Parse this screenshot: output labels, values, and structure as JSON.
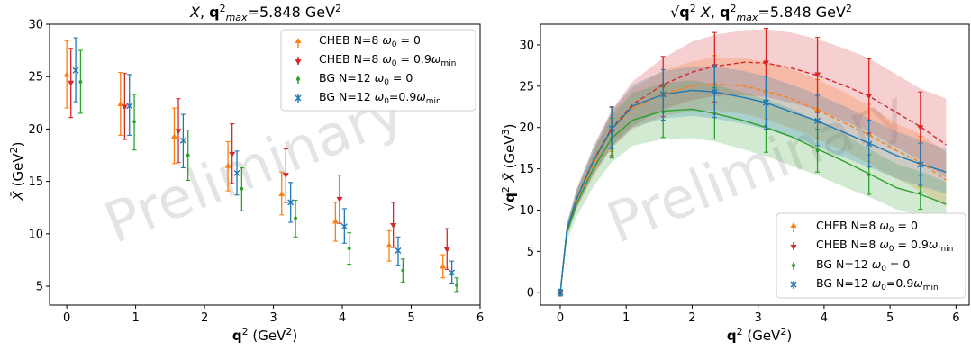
{
  "chart_data": [
    {
      "type": "scatter",
      "title": "X̄,  q²max=5.848 GeV²",
      "xlabel": "q² (GeV²)",
      "ylabel": "X̄ (GeV²)",
      "xlim": [
        -0.25,
        6
      ],
      "ylim": [
        3.2,
        30
      ],
      "xticks": [
        0,
        1,
        2,
        3,
        4,
        5,
        6
      ],
      "yticks": [
        5,
        10,
        15,
        20,
        25,
        30
      ],
      "grid": false,
      "legend_position": "top-right",
      "watermark": "Preliminary",
      "series": [
        {
          "name": "CHEB N=8  ω0 = 0",
          "color": "#ff7f0e",
          "marker": "triangle-up",
          "points": [
            {
              "x": 0.0,
              "y": 25.2,
              "lo": 22.0,
              "hi": 28.4
            },
            {
              "x": 0.78,
              "y": 22.4,
              "lo": 19.4,
              "hi": 25.4
            },
            {
              "x": 1.56,
              "y": 19.3,
              "lo": 16.7,
              "hi": 22.0
            },
            {
              "x": 2.34,
              "y": 16.5,
              "lo": 14.1,
              "hi": 18.8
            },
            {
              "x": 3.12,
              "y": 13.8,
              "lo": 11.8,
              "hi": 15.9
            },
            {
              "x": 3.9,
              "y": 11.2,
              "lo": 9.3,
              "hi": 13.0
            },
            {
              "x": 4.68,
              "y": 8.9,
              "lo": 7.4,
              "hi": 10.3
            },
            {
              "x": 5.46,
              "y": 6.9,
              "lo": 5.8,
              "hi": 8.0
            }
          ]
        },
        {
          "name": "CHEB N=8  ω0 = 0.9ωmin",
          "color": "#d62728",
          "marker": "triangle-down",
          "points": [
            {
              "x": 0.06,
              "y": 24.4,
              "lo": 21.1,
              "hi": 27.7
            },
            {
              "x": 0.84,
              "y": 22.1,
              "lo": 19.0,
              "hi": 25.3
            },
            {
              "x": 1.62,
              "y": 19.8,
              "lo": 16.8,
              "hi": 22.9
            },
            {
              "x": 2.4,
              "y": 17.6,
              "lo": 14.8,
              "hi": 20.5
            },
            {
              "x": 3.18,
              "y": 15.6,
              "lo": 13.0,
              "hi": 18.1
            },
            {
              "x": 3.96,
              "y": 13.3,
              "lo": 11.0,
              "hi": 15.6
            },
            {
              "x": 4.74,
              "y": 10.8,
              "lo": 8.7,
              "hi": 13.0
            },
            {
              "x": 5.52,
              "y": 8.5,
              "lo": 6.6,
              "hi": 10.5
            }
          ]
        },
        {
          "name": "BG      N=12  ω0 = 0",
          "color": "#2ca02c",
          "marker": "dot",
          "points": [
            {
              "x": 0.2,
              "y": 24.5,
              "lo": 21.5,
              "hi": 27.5
            },
            {
              "x": 0.98,
              "y": 20.7,
              "lo": 18.0,
              "hi": 23.3
            },
            {
              "x": 1.76,
              "y": 17.5,
              "lo": 15.1,
              "hi": 19.9
            },
            {
              "x": 2.54,
              "y": 14.3,
              "lo": 12.2,
              "hi": 16.3
            },
            {
              "x": 3.32,
              "y": 11.5,
              "lo": 9.7,
              "hi": 13.2
            },
            {
              "x": 4.1,
              "y": 8.6,
              "lo": 7.1,
              "hi": 10.1
            },
            {
              "x": 4.88,
              "y": 6.5,
              "lo": 5.4,
              "hi": 7.6
            },
            {
              "x": 5.66,
              "y": 5.1,
              "lo": 4.5,
              "hi": 5.8
            }
          ]
        },
        {
          "name": "BG      N=12  ω0=0.9ωmin",
          "color": "#1f77b4",
          "marker": "x",
          "points": [
            {
              "x": 0.13,
              "y": 25.6,
              "lo": 22.6,
              "hi": 28.7
            },
            {
              "x": 0.91,
              "y": 22.2,
              "lo": 19.4,
              "hi": 25.2
            },
            {
              "x": 1.69,
              "y": 18.9,
              "lo": 16.3,
              "hi": 21.4
            },
            {
              "x": 2.47,
              "y": 15.8,
              "lo": 13.7,
              "hi": 17.9
            },
            {
              "x": 3.25,
              "y": 13.0,
              "lo": 11.1,
              "hi": 14.9
            },
            {
              "x": 4.03,
              "y": 10.7,
              "lo": 9.1,
              "hi": 12.4
            },
            {
              "x": 4.81,
              "y": 8.4,
              "lo": 7.0,
              "hi": 9.7
            },
            {
              "x": 5.59,
              "y": 6.3,
              "lo": 5.3,
              "hi": 7.4
            }
          ]
        }
      ]
    },
    {
      "type": "line",
      "title": "√q² X̄,  q²max=5.848 GeV²",
      "xlabel": "q² (GeV²)",
      "ylabel": "√q² X̄ (GeV³)",
      "xlim": [
        -0.3,
        6.2
      ],
      "ylim": [
        -1.5,
        32.5
      ],
      "xticks": [
        0,
        1,
        2,
        3,
        4,
        5,
        6
      ],
      "yticks": [
        0,
        5,
        10,
        15,
        20,
        25,
        30
      ],
      "grid": false,
      "legend_position": "bottom-right",
      "watermark": "Preliminary",
      "series": [
        {
          "name": "CHEB N=8  ω0 = 0",
          "color": "#ff7f0e",
          "marker": "triangle-up",
          "dashed": true,
          "x": [
            0,
            0.1,
            0.25,
            0.5,
            0.78,
            1.1,
            1.56,
            2.0,
            2.34,
            2.8,
            3.12,
            3.5,
            3.9,
            4.3,
            4.68,
            5.1,
            5.46,
            5.85
          ],
          "y": [
            0,
            7.5,
            11.2,
            15.5,
            19.8,
            22.3,
            24.1,
            25.0,
            25.3,
            25.0,
            24.4,
            23.5,
            22.1,
            20.6,
            19.1,
            17.2,
            15.8,
            13.6
          ],
          "band_lo": [
            0,
            6.8,
            10.2,
            14.0,
            17.5,
            19.8,
            21.4,
            22.0,
            22.1,
            21.6,
            21.0,
            19.9,
            18.6,
            17.2,
            15.6,
            13.8,
            12.3,
            10.4
          ],
          "band_hi": [
            0,
            8.2,
            12.3,
            17.0,
            22.0,
            24.8,
            26.9,
            28.0,
            28.5,
            28.4,
            27.9,
            27.1,
            25.8,
            24.3,
            22.6,
            20.5,
            19.2,
            17.0
          ],
          "points": [
            {
              "x": 0.0,
              "y": 0.0,
              "lo": -0.4,
              "hi": 0.4
            },
            {
              "x": 0.78,
              "y": 19.8,
              "lo": 17.1,
              "hi": 22.4
            },
            {
              "x": 1.56,
              "y": 24.1,
              "lo": 20.8,
              "hi": 27.3
            },
            {
              "x": 2.34,
              "y": 25.3,
              "lo": 21.8,
              "hi": 28.7
            },
            {
              "x": 3.12,
              "y": 24.5,
              "lo": 21.0,
              "hi": 28.1
            },
            {
              "x": 3.9,
              "y": 22.2,
              "lo": 18.7,
              "hi": 25.8
            },
            {
              "x": 4.68,
              "y": 19.3,
              "lo": 15.9,
              "hi": 22.8
            },
            {
              "x": 5.46,
              "y": 15.8,
              "lo": 12.8,
              "hi": 18.9
            }
          ]
        },
        {
          "name": "CHEB N=8  ω0 = 0.9ωmin",
          "color": "#d62728",
          "marker": "triangle-down",
          "dashed": true,
          "x": [
            0,
            0.1,
            0.25,
            0.5,
            0.78,
            1.1,
            1.56,
            2.0,
            2.34,
            2.8,
            3.12,
            3.5,
            3.9,
            4.3,
            4.68,
            5.1,
            5.46,
            5.85
          ],
          "y": [
            0,
            7.5,
            11.4,
            16.0,
            19.9,
            22.8,
            25.2,
            26.7,
            27.4,
            27.9,
            27.8,
            27.2,
            26.3,
            25.1,
            23.8,
            21.8,
            20.1,
            17.9
          ],
          "band_lo": [
            0,
            6.8,
            10.3,
            14.4,
            17.8,
            20.2,
            22.2,
            23.3,
            23.8,
            23.9,
            23.7,
            23.0,
            22.1,
            20.8,
            19.5,
            17.6,
            16.0,
            13.9
          ],
          "band_hi": [
            0,
            8.3,
            12.6,
            17.6,
            22.1,
            25.6,
            28.4,
            30.4,
            31.2,
            31.8,
            31.9,
            31.5,
            30.7,
            29.6,
            28.4,
            26.4,
            24.7,
            23.5
          ],
          "points": [
            {
              "x": 0.0,
              "y": 0.0,
              "lo": -0.4,
              "hi": 0.4
            },
            {
              "x": 0.78,
              "y": 19.5,
              "lo": 16.6,
              "hi": 22.5
            },
            {
              "x": 1.56,
              "y": 25.0,
              "lo": 21.3,
              "hi": 28.6
            },
            {
              "x": 2.34,
              "y": 27.4,
              "lo": 23.1,
              "hi": 31.5
            },
            {
              "x": 3.12,
              "y": 27.8,
              "lo": 23.3,
              "hi": 32.0
            },
            {
              "x": 3.9,
              "y": 26.4,
              "lo": 21.8,
              "hi": 30.9
            },
            {
              "x": 4.68,
              "y": 23.8,
              "lo": 19.3,
              "hi": 28.3
            },
            {
              "x": 5.46,
              "y": 20.0,
              "lo": 15.7,
              "hi": 24.3
            }
          ]
        },
        {
          "name": "BG      N=12  ω0 = 0",
          "color": "#2ca02c",
          "marker": "dot",
          "dashed": false,
          "x": [
            0,
            0.1,
            0.25,
            0.5,
            0.78,
            1.1,
            1.56,
            2.0,
            2.34,
            2.8,
            3.12,
            3.5,
            3.9,
            4.3,
            4.68,
            5.1,
            5.46,
            5.85
          ],
          "y": [
            0,
            7.3,
            10.8,
            15.0,
            18.7,
            20.9,
            22.0,
            22.2,
            21.7,
            20.8,
            20.0,
            18.9,
            17.4,
            15.9,
            14.4,
            12.7,
            11.9,
            10.7
          ],
          "band_lo": [
            0,
            6.3,
            9.2,
            12.8,
            15.8,
            17.8,
            18.6,
            18.7,
            18.3,
            17.3,
            16.5,
            15.4,
            14.2,
            12.8,
            11.6,
            10.1,
            9.3,
            8.3
          ],
          "band_hi": [
            0,
            8.2,
            12.3,
            17.1,
            21.5,
            24.2,
            25.4,
            25.7,
            25.2,
            24.2,
            23.4,
            22.3,
            20.8,
            19.2,
            17.4,
            15.6,
            14.7,
            13.4
          ],
          "points": [
            {
              "x": 0.0,
              "y": 0.0,
              "lo": -0.4,
              "hi": 0.4
            },
            {
              "x": 0.78,
              "y": 18.7,
              "lo": 16.3,
              "hi": 21.1
            },
            {
              "x": 1.56,
              "y": 21.9,
              "lo": 18.8,
              "hi": 25.0
            },
            {
              "x": 2.34,
              "y": 21.7,
              "lo": 18.6,
              "hi": 24.8
            },
            {
              "x": 3.12,
              "y": 20.2,
              "lo": 17.0,
              "hi": 23.3
            },
            {
              "x": 3.9,
              "y": 17.2,
              "lo": 14.6,
              "hi": 19.8
            },
            {
              "x": 4.68,
              "y": 14.3,
              "lo": 11.9,
              "hi": 16.7
            },
            {
              "x": 5.46,
              "y": 12.1,
              "lo": 10.1,
              "hi": 14.2
            }
          ]
        },
        {
          "name": "BG      N=12  ω0=0.9ωmin",
          "color": "#1f77b4",
          "marker": "x",
          "dashed": false,
          "x": [
            0,
            0.1,
            0.25,
            0.5,
            0.78,
            1.1,
            1.56,
            2.0,
            2.34,
            2.8,
            3.12,
            3.5,
            3.9,
            4.3,
            4.68,
            5.1,
            5.46,
            5.85
          ],
          "y": [
            0,
            7.6,
            11.4,
            15.9,
            19.8,
            22.6,
            24.0,
            24.5,
            24.3,
            23.6,
            23.0,
            21.9,
            20.8,
            19.4,
            18.1,
            16.6,
            15.6,
            14.6
          ],
          "band_lo": [
            0,
            6.9,
            10.3,
            14.3,
            17.6,
            20.0,
            21.1,
            21.4,
            21.1,
            20.4,
            19.8,
            18.8,
            17.7,
            16.4,
            15.2,
            13.8,
            12.9,
            12.0
          ],
          "band_hi": [
            0,
            8.4,
            12.6,
            17.6,
            22.0,
            25.2,
            26.8,
            27.4,
            27.4,
            26.8,
            26.2,
            25.2,
            24.0,
            22.6,
            21.1,
            19.5,
            18.5,
            17.4
          ],
          "points": [
            {
              "x": 0.0,
              "y": 0.0,
              "lo": -0.4,
              "hi": 0.4
            },
            {
              "x": 0.78,
              "y": 19.9,
              "lo": 17.4,
              "hi": 22.5
            },
            {
              "x": 1.56,
              "y": 24.0,
              "lo": 20.9,
              "hi": 27.0
            },
            {
              "x": 2.34,
              "y": 24.3,
              "lo": 21.2,
              "hi": 27.5
            },
            {
              "x": 3.12,
              "y": 23.0,
              "lo": 19.8,
              "hi": 26.2
            },
            {
              "x": 3.9,
              "y": 20.8,
              "lo": 17.8,
              "hi": 23.9
            },
            {
              "x": 4.68,
              "y": 18.0,
              "lo": 15.2,
              "hi": 20.9
            },
            {
              "x": 5.46,
              "y": 15.5,
              "lo": 13.0,
              "hi": 18.1
            }
          ]
        }
      ]
    }
  ]
}
